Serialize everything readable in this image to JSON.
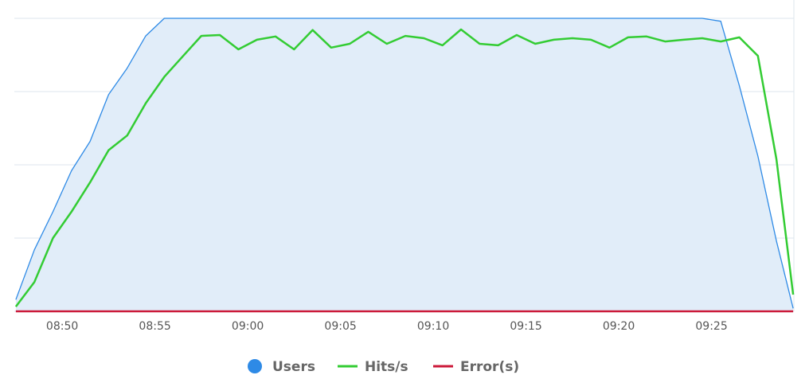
{
  "chart_data": {
    "type": "line",
    "x": [
      47.5,
      48.5,
      49.5,
      50.5,
      51.5,
      52.5,
      53.5,
      54.5,
      55.5,
      56.5,
      57.5,
      58.5,
      59.5,
      60.5,
      61.5,
      62.5,
      63.5,
      64.5,
      65.5,
      66.5,
      67.5,
      68.5,
      69.5,
      70.5,
      71.5,
      72.5,
      73.5,
      74.5,
      75.5,
      76.5,
      77.5,
      78.5,
      79.5,
      80.5,
      81.5,
      82.5,
      83.5,
      84.5,
      85.5,
      86.5,
      87.5,
      88.5,
      89.4
    ],
    "xlim": [
      47.42,
      89.44
    ],
    "xticks": [
      {
        "value": 50,
        "label": "08:50"
      },
      {
        "value": 55,
        "label": "08:55"
      },
      {
        "value": 60,
        "label": "09:00"
      },
      {
        "value": 65,
        "label": "09:05"
      },
      {
        "value": 70,
        "label": "09:10"
      },
      {
        "value": 75,
        "label": "09:15"
      },
      {
        "value": 80,
        "label": "09:20"
      },
      {
        "value": 85,
        "label": "09:25"
      }
    ],
    "ylim": [
      0,
      100
    ],
    "yticks": [
      0,
      25,
      50,
      75,
      100
    ],
    "grid": true,
    "series": [
      {
        "name": "Users",
        "color": "#2e8ae6",
        "fill": "#e1edf9",
        "values": [
          4,
          21,
          34,
          48,
          58,
          74,
          83,
          94,
          100,
          100,
          100,
          100,
          100,
          100,
          100,
          100,
          100,
          100,
          100,
          100,
          100,
          100,
          100,
          100,
          100,
          100,
          100,
          100,
          100,
          100,
          100,
          100,
          100,
          100,
          100,
          100,
          100,
          100,
          99,
          77,
          53,
          24,
          1
        ]
      },
      {
        "name": "Hits/s",
        "color": "#33cc33",
        "values": [
          1.6,
          10,
          25,
          34,
          44,
          55,
          60,
          71,
          80,
          87,
          94,
          94.3,
          89.4,
          92.7,
          93.8,
          89.4,
          96,
          90,
          91.3,
          95.4,
          91.3,
          94,
          93.2,
          90.8,
          96.2,
          91.3,
          90.8,
          94.3,
          91.3,
          92.7,
          93.2,
          92.7,
          90,
          93.5,
          93.8,
          92.1,
          92.7,
          93.2,
          92.1,
          93.5,
          87.2,
          51.9,
          5.7
        ]
      },
      {
        "name": "Error(s)",
        "color": "#cc1a3a",
        "values": [
          0,
          0,
          0,
          0,
          0,
          0,
          0,
          0,
          0,
          0,
          0,
          0,
          0,
          0,
          0,
          0,
          0,
          0,
          0,
          0,
          0,
          0,
          0,
          0,
          0,
          0,
          0,
          0,
          0,
          0,
          0,
          0,
          0,
          0,
          0,
          0,
          0,
          0,
          0,
          0,
          0,
          0,
          0
        ]
      }
    ]
  }
}
